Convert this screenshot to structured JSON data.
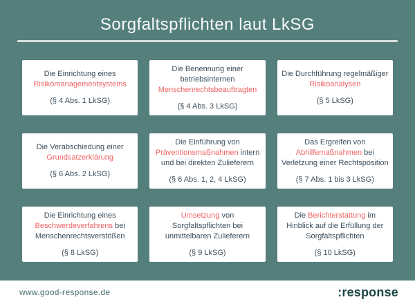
{
  "title": "Sorgfaltspflichten laut LkSG",
  "colors": {
    "background": "#557f7d",
    "card_background": "#ffffff",
    "text_dark": "#3c4e5c",
    "highlight_red": "#ef6262",
    "divider": "#d8e0df",
    "footer_url": "#466e6d",
    "logo": "#1c4747",
    "title_text": "#f7fafa"
  },
  "cards": [
    {
      "lines": [
        [
          {
            "t": "Die Einrichtung eines",
            "hl": false
          }
        ],
        [
          {
            "t": "Risikomanagementsystems",
            "hl": true
          }
        ]
      ],
      "ref": "(§ 4 Abs. 1 LkSG)"
    },
    {
      "lines": [
        [
          {
            "t": "Die Benennung einer",
            "hl": false
          }
        ],
        [
          {
            "t": "betriebsinternen",
            "hl": false
          }
        ],
        [
          {
            "t": "Menschenrechtsbeauftragten",
            "hl": true
          }
        ]
      ],
      "ref": "(§ 4 Abs. 3 LkSG)"
    },
    {
      "lines": [
        [
          {
            "t": "Die Durchführung regelmäßiger",
            "hl": false
          }
        ],
        [
          {
            "t": "Risikoanalysen",
            "hl": true
          }
        ]
      ],
      "ref": "(§ 5 LkSG)"
    },
    {
      "lines": [
        [
          {
            "t": "Die Verabschiedung einer",
            "hl": false
          }
        ],
        [
          {
            "t": "Grundsatzerklärung",
            "hl": true
          }
        ]
      ],
      "ref": "(§ 6 Abs. 2 LkSG)"
    },
    {
      "lines": [
        [
          {
            "t": "Die Einführung von",
            "hl": false
          }
        ],
        [
          {
            "t": "Präventionsmaßnahmen",
            "hl": true
          },
          {
            "t": " intern",
            "hl": false
          }
        ],
        [
          {
            "t": "und bei direkten Zulieferern",
            "hl": false
          }
        ]
      ],
      "ref": "(§ 6 Abs. 1, 2, 4 LkSG)"
    },
    {
      "lines": [
        [
          {
            "t": "Das Ergreifen von",
            "hl": false
          }
        ],
        [
          {
            "t": "Abhilfemaßnahmen",
            "hl": true
          },
          {
            "t": " bei",
            "hl": false
          }
        ],
        [
          {
            "t": "Verletzung einer Rechtsposition",
            "hl": false
          }
        ]
      ],
      "ref": "(§ 7 Abs. 1 bis 3 LkSG)"
    },
    {
      "lines": [
        [
          {
            "t": "Die Einrichtung eines",
            "hl": false
          }
        ],
        [
          {
            "t": "Beschwerdeverfahrens",
            "hl": true
          },
          {
            "t": " bei",
            "hl": false
          }
        ],
        [
          {
            "t": "Menschenrechtsverstößen",
            "hl": false
          }
        ]
      ],
      "ref": "(§ 8 LkSG)"
    },
    {
      "lines": [
        [
          {
            "t": "Umsetzung",
            "hl": true
          },
          {
            "t": " von",
            "hl": false
          }
        ],
        [
          {
            "t": "Sorgfaltspflichten bei",
            "hl": false
          }
        ],
        [
          {
            "t": "unmittelbaren Zulieferern",
            "hl": false
          }
        ]
      ],
      "ref": "(§ 9 LkSG)"
    },
    {
      "lines": [
        [
          {
            "t": "Die ",
            "hl": false
          },
          {
            "t": "Berichterstattung",
            "hl": true
          },
          {
            "t": " im",
            "hl": false
          }
        ],
        [
          {
            "t": "Hinblick auf die Erfüllung der",
            "hl": false
          }
        ],
        [
          {
            "t": "Sorgfaltspflichten",
            "hl": false
          }
        ]
      ],
      "ref": "(§ 10 LkSG)"
    }
  ],
  "footer": {
    "url": "www.good-response.de",
    "logo": ":response"
  }
}
